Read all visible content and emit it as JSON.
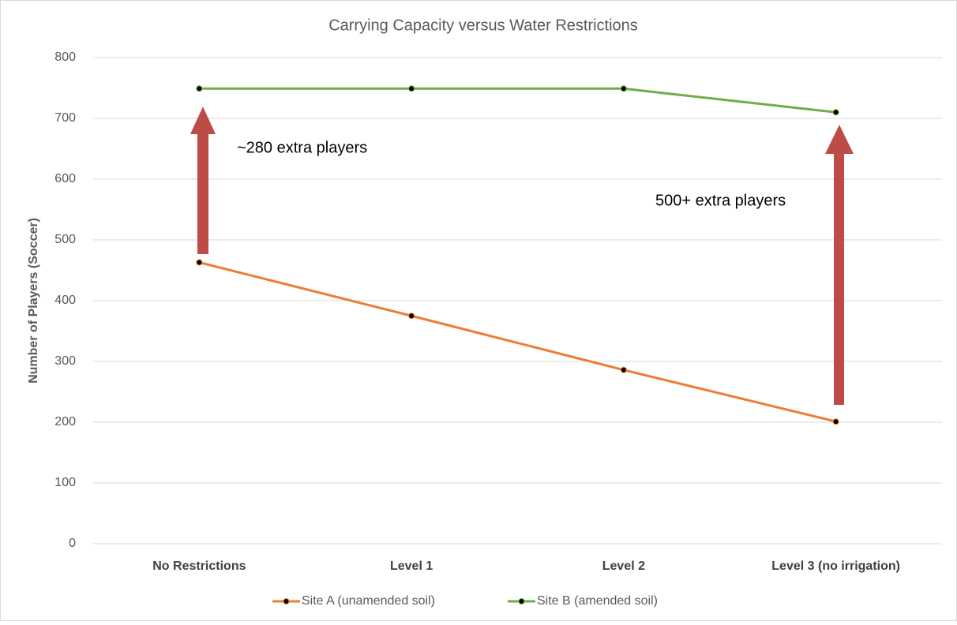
{
  "chart_data": {
    "type": "line",
    "title": "Carrying Capacity versus Water Restrictions",
    "y_label": "Number of Players (Soccer)",
    "categories": [
      "No Restrictions",
      "Level 1",
      "Level 2",
      "Level 3 (no irrigation)"
    ],
    "series": [
      {
        "name": "Site A (unamended soil)",
        "color": "#ed7d31",
        "values": [
          463,
          375,
          286,
          201
        ]
      },
      {
        "name": "Site B (amended soil)",
        "color": "#70ad47",
        "values": [
          749,
          749,
          749,
          710
        ]
      }
    ],
    "ylim": [
      0,
      800
    ],
    "yticks": [
      0,
      100,
      200,
      300,
      400,
      500,
      600,
      700,
      800
    ],
    "grid": true,
    "legend": "bottom",
    "annotations": [
      "~280 extra players",
      "500+ extra players"
    ]
  }
}
